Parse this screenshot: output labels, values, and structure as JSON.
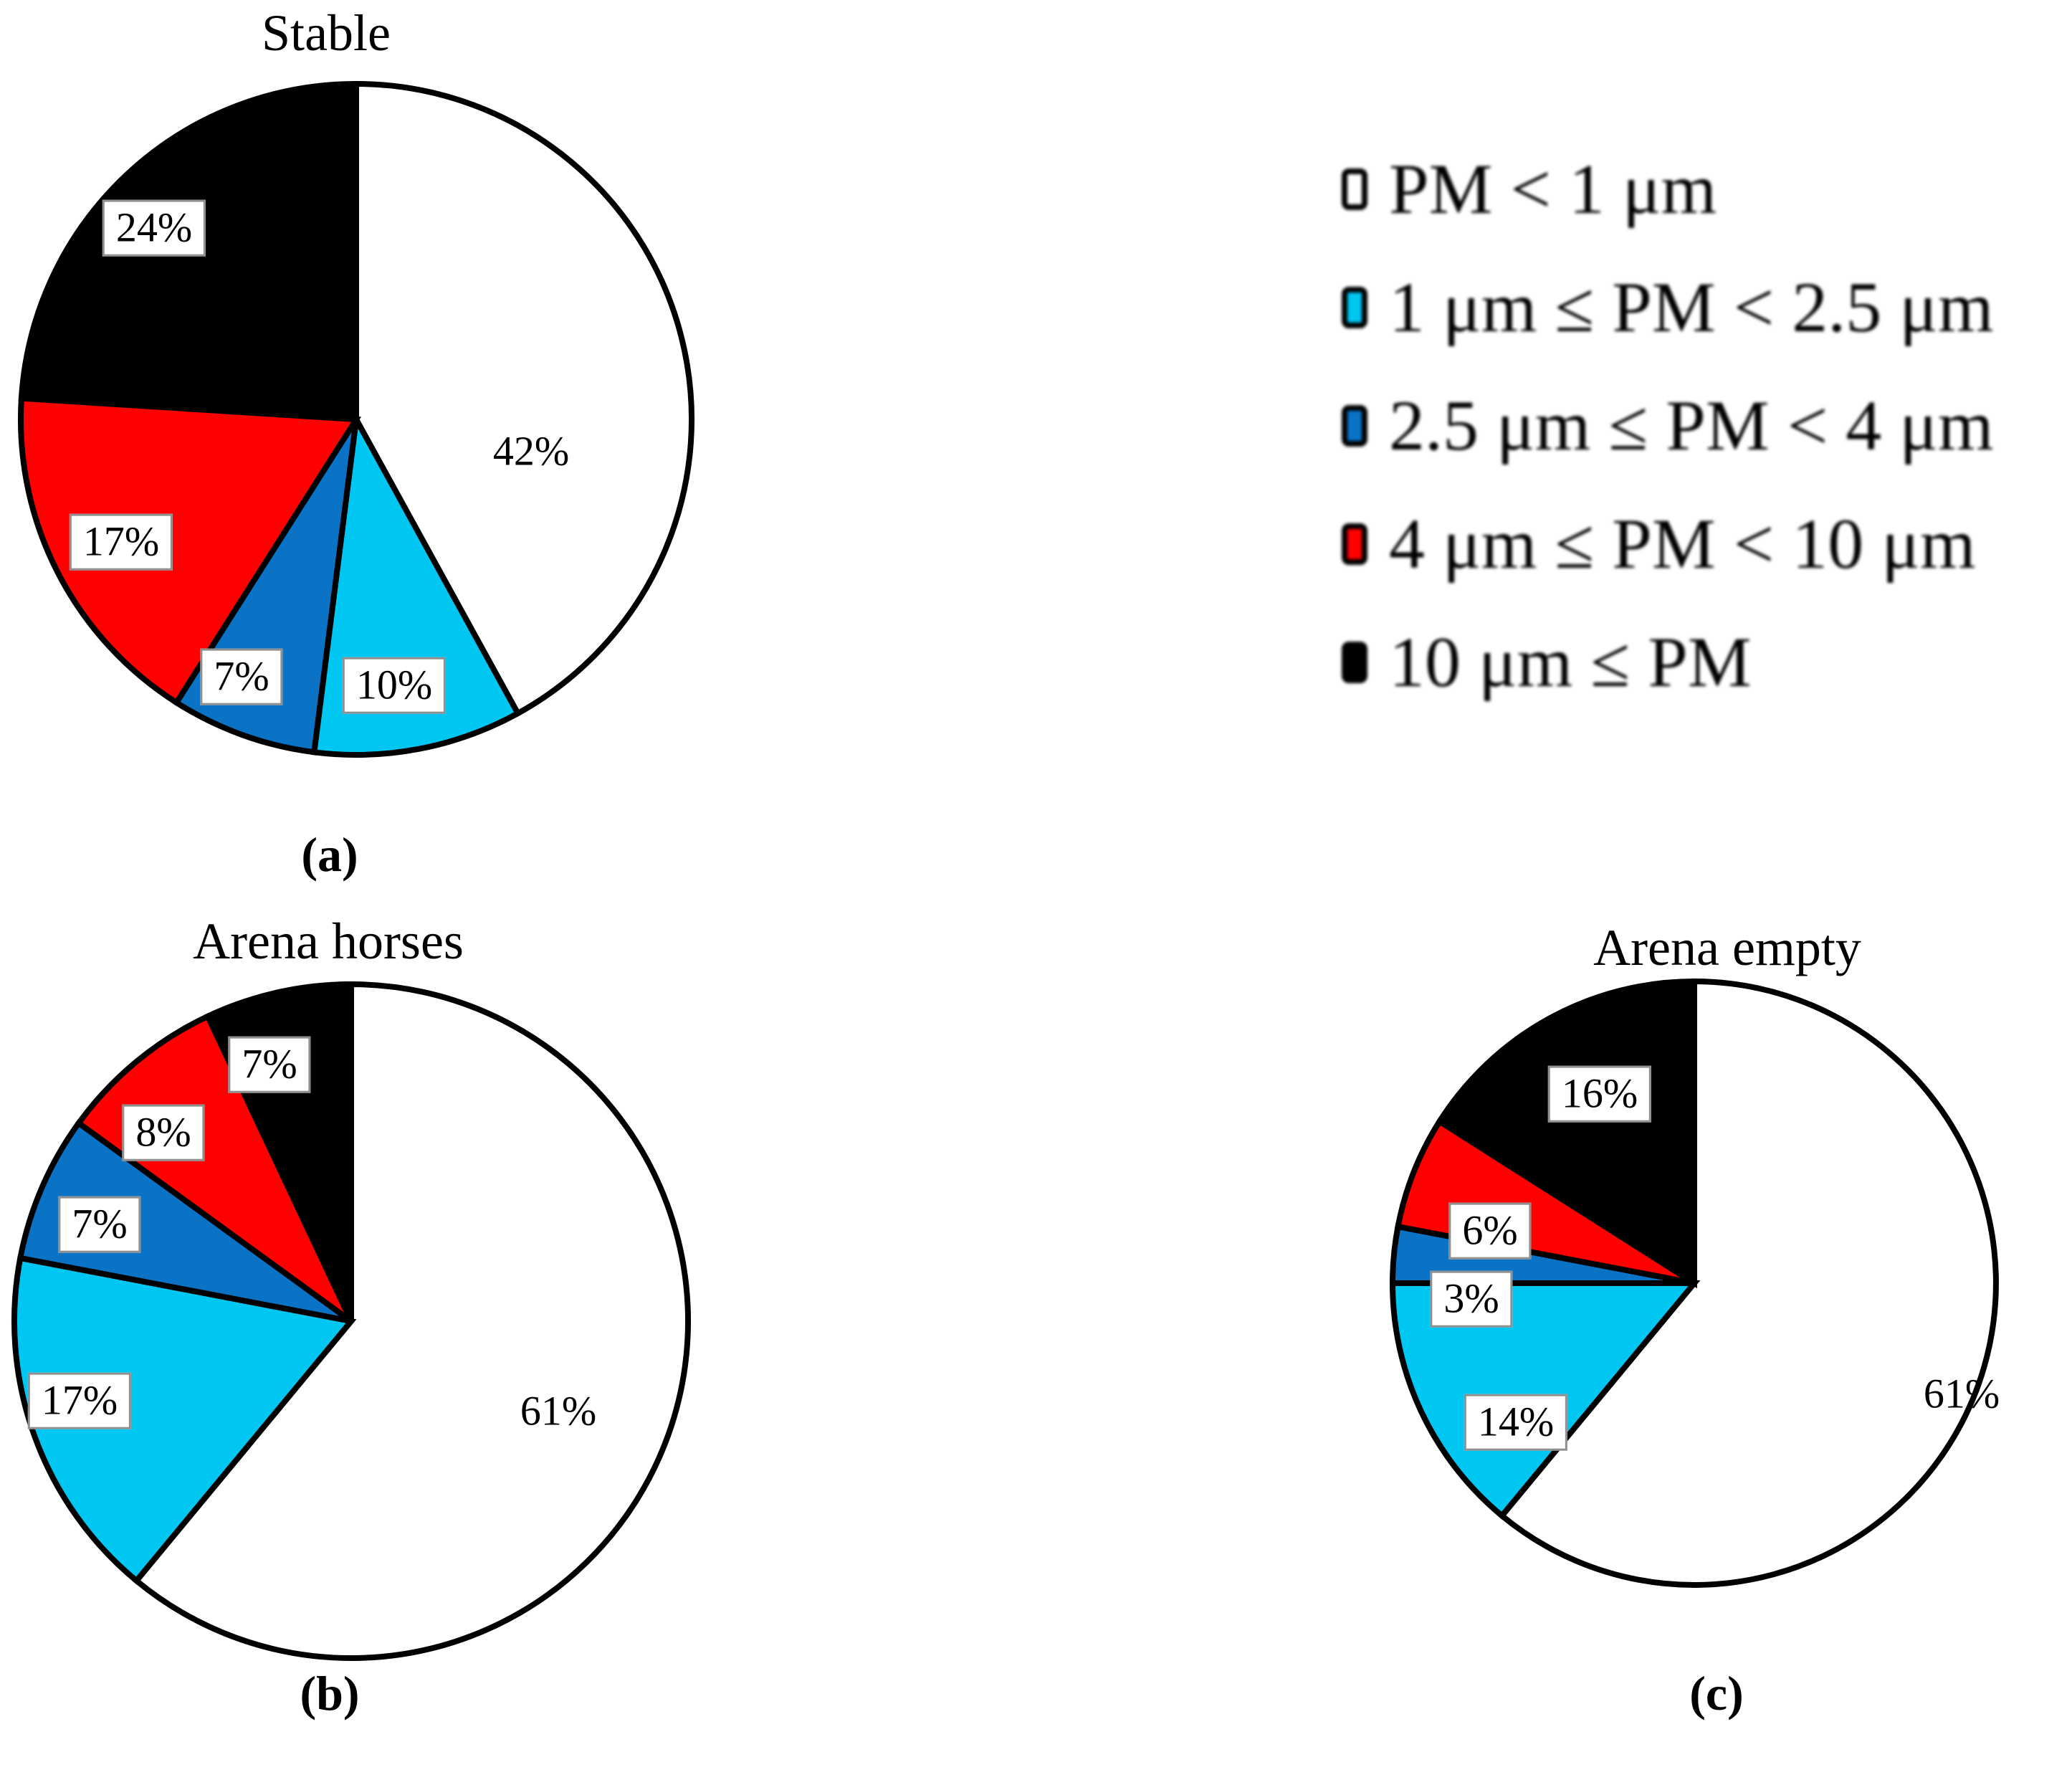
{
  "figure": {
    "background": "#FFFFFF",
    "description_colors": {
      "white": "#FFFFFF",
      "cyan": "#00C6F2",
      "blue": "#0B73C6",
      "red": "#FF0000",
      "black": "#000000"
    }
  },
  "legend": {
    "position": "top-right",
    "items": [
      {
        "label": "PM < 1 μm",
        "color": "#FFFFFF"
      },
      {
        "label": "1 μm ≤ PM < 2.5 μm",
        "color": "#00C6F2"
      },
      {
        "label": "2.5 μm ≤ PM < 4 μm",
        "color": "#0B73C6"
      },
      {
        "label": "4 μm ≤ PM < 10 μm",
        "color": "#FF0000"
      },
      {
        "label": "10 μm ≤ PM",
        "color": "#000000"
      }
    ]
  },
  "chart_data": [
    {
      "type": "pie",
      "panel": "(a)",
      "title": "Stable",
      "categories": [
        "PM < 1 μm",
        "1 μm ≤ PM < 2.5 μm",
        "2.5 μm ≤ PM < 4 μm",
        "4 μm ≤ PM < 10 μm",
        "10 μm ≤ PM"
      ],
      "values": [
        42,
        10,
        7,
        17,
        24
      ],
      "labels": [
        "42%",
        "10%",
        "7%",
        "17%",
        "24%"
      ],
      "colors": [
        "#FFFFFF",
        "#00C6F2",
        "#0B73C6",
        "#FF0000",
        "#000000"
      ],
      "unit": "%",
      "start_angle_deg": 0,
      "direction": "clockwise",
      "legend_shown": false
    },
    {
      "type": "pie",
      "panel": "(b)",
      "title": "Arena horses",
      "categories": [
        "PM < 1 μm",
        "1 μm ≤ PM < 2.5 μm",
        "2.5 μm ≤ PM < 4 μm",
        "4 μm ≤ PM < 10 μm",
        "10 μm ≤ PM"
      ],
      "values": [
        61,
        17,
        7,
        8,
        7
      ],
      "labels": [
        "61%",
        "17%",
        "7%",
        "8%",
        "7%"
      ],
      "colors": [
        "#FFFFFF",
        "#00C6F2",
        "#0B73C6",
        "#FF0000",
        "#000000"
      ],
      "unit": "%",
      "start_angle_deg": 0,
      "direction": "clockwise",
      "legend_shown": false
    },
    {
      "type": "pie",
      "panel": "(c)",
      "title": "Arena empty",
      "categories": [
        "PM < 1 μm",
        "1 μm ≤ PM < 2.5 μm",
        "2.5 μm ≤ PM < 4 μm",
        "4 μm ≤ PM < 10 μm",
        "10 μm ≤ PM"
      ],
      "values": [
        61,
        14,
        3,
        6,
        16
      ],
      "labels": [
        "61%",
        "14%",
        "3%",
        "6%",
        "16%"
      ],
      "colors": [
        "#FFFFFF",
        "#00C6F2",
        "#0B73C6",
        "#FF0000",
        "#000000"
      ],
      "unit": "%",
      "start_angle_deg": 0,
      "direction": "clockwise",
      "legend_shown": false
    }
  ]
}
